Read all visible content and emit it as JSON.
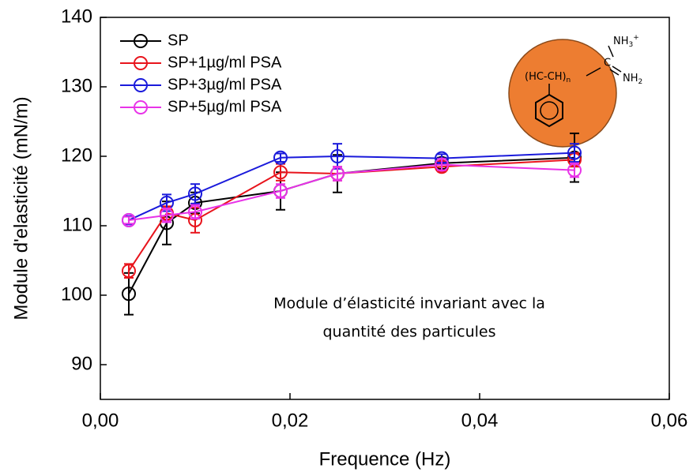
{
  "chart_data": {
    "type": "line",
    "x_label": "Frequence (Hz)",
    "y_label": "Module d'elasticité (mN/m)",
    "xlim": [
      0,
      0.06
    ],
    "xticks": [
      {
        "value": 0,
        "label": "0,00"
      },
      {
        "value": 0.02,
        "label": "0,02"
      },
      {
        "value": 0.04,
        "label": "0,04"
      },
      {
        "value": 0.06,
        "label": "0,06"
      }
    ],
    "ylim": [
      85,
      140
    ],
    "yticks": [
      90,
      100,
      110,
      120,
      130,
      140
    ],
    "legend": "upper-left",
    "x": [
      0.003,
      0.007,
      0.01,
      0.019,
      0.025,
      0.036,
      0.05
    ],
    "series": [
      {
        "name": "SP",
        "color": "#000000",
        "values": [
          100.2,
          110.4,
          113.3,
          115,
          117.5,
          119,
          119.8
        ],
        "errors": [
          3,
          3.1,
          1.5,
          2.7,
          2.7,
          0.8,
          3.5
        ]
      },
      {
        "name": "SP+1µg/ml PSA",
        "color": "#e8141c",
        "values": [
          103.5,
          111.8,
          110.8,
          117.7,
          117.5,
          118.5,
          119.5
        ],
        "errors": [
          1,
          1,
          1.8,
          1.2,
          1,
          0.7,
          1
        ]
      },
      {
        "name": "SP+3µg/ml PSA",
        "color": "#1a1adb",
        "values": [
          110.8,
          113.3,
          114.6,
          119.8,
          120,
          119.7,
          120.5
        ],
        "errors": [
          0.6,
          1.2,
          1.4,
          0.6,
          1.8,
          0.6,
          1.3
        ]
      },
      {
        "name": "SP+5µg/ml PSA",
        "color": "#e833e8",
        "values": [
          110.8,
          111.5,
          112,
          115,
          117.5,
          118.8,
          118
        ],
        "errors": [
          0.5,
          1,
          1,
          1,
          1,
          0.8,
          1
        ]
      }
    ],
    "annotation": [
      "Module d’élasticité invariant avec la",
      "quantité des particules"
    ],
    "inset": {
      "polymer": "(HC-CH)",
      "polymer_index": "n",
      "amine": "NH",
      "amine_sub": "3",
      "amine_charge": "+",
      "carbon": "C",
      "imine": "NH",
      "imine_sub": "2"
    }
  }
}
